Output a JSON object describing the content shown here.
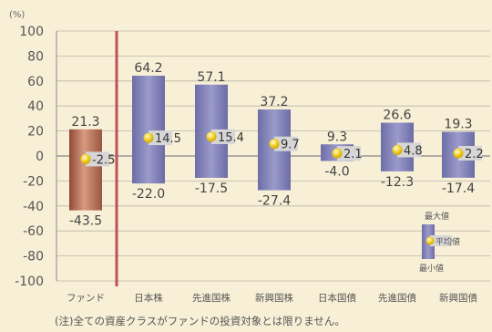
{
  "chart_data": {
    "type": "bar",
    "unit_label": "(%)",
    "categories": [
      "ファンド",
      "日本株",
      "先進国株",
      "新興国株",
      "日本国債",
      "先進国債",
      "新興国債"
    ],
    "series": [
      {
        "name": "最大値",
        "values": [
          21.3,
          64.2,
          57.1,
          37.2,
          9.3,
          26.6,
          19.3
        ]
      },
      {
        "name": "平均値",
        "values": [
          -2.5,
          14.5,
          15.4,
          9.7,
          2.1,
          4.8,
          2.2
        ]
      },
      {
        "name": "最小値",
        "values": [
          -43.5,
          -22.0,
          -17.5,
          -27.4,
          -4.0,
          -12.3,
          -17.4
        ]
      }
    ],
    "max_labels": [
      "21.3",
      "64.2",
      "57.1",
      "37.2",
      "9.3",
      "26.6",
      "19.3"
    ],
    "avg_labels": [
      "-2.5",
      "14.5",
      "15.4",
      "9.7",
      "2.1",
      "4.8",
      "2.2"
    ],
    "min_labels": [
      "-43.5",
      "-22.0",
      "-17.5",
      "-27.4",
      "-4.0",
      "-12.3",
      "-17.4"
    ],
    "ylim": [
      -100,
      100
    ],
    "yticks": [
      100,
      80,
      60,
      40,
      20,
      0,
      -20,
      -40,
      -60,
      -80,
      -100
    ],
    "legend": {
      "max": "最大値",
      "avg": "平均値",
      "min": "最小値"
    },
    "note": "(注)全ての資産クラスがファンドの投資対象とは限りません。",
    "colors": {
      "background": "#f7efd6",
      "fund_bar": "#b5705a",
      "asset_bar": "#7f7fb8",
      "divider": "#c0505a",
      "avg_box": "#d6d6d6",
      "avg_dot": "#f0d020"
    }
  }
}
